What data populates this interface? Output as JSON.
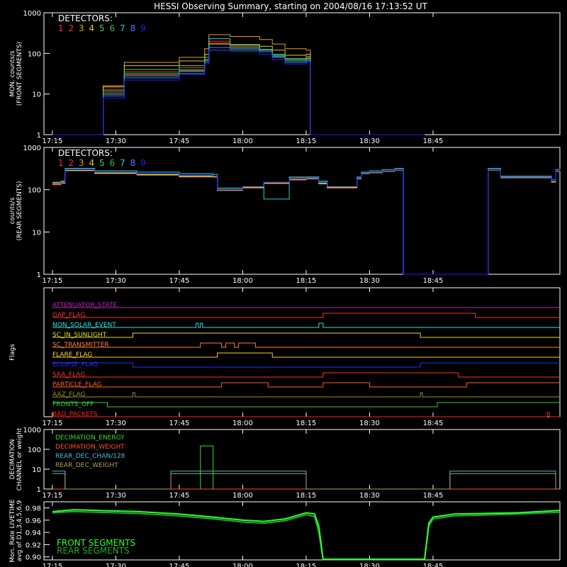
{
  "title": "HESSI Observing Summary, starting on 2004/08/16 17:13:52 UT",
  "colors": {
    "background": "#000000",
    "axes": "#ffffff",
    "detectors": [
      "#ff3030",
      "#ff3030",
      "#e0a020",
      "#e0d020",
      "#50d050",
      "#20c040",
      "#30d0c0",
      "#4080ff",
      "#2020ff"
    ],
    "flags": [
      "#c020c0",
      "#ff3030",
      "#30e0e0",
      "#e0e020",
      "#ff8030",
      "#ffd030",
      "#2030ff",
      "#ff3030",
      "#ff6020",
      "#a09020",
      "#30d030",
      "#ff2020"
    ],
    "decimation": [
      "#30e030",
      "#ff5020",
      "#40c0e0",
      "#b0a060"
    ],
    "livetime": [
      "#30ff30",
      "#20b020"
    ]
  },
  "x_ticks": [
    "17:15",
    "17:30",
    "17:45",
    "18:00",
    "18:15",
    "18:30",
    "18:45"
  ],
  "chart_data": [
    {
      "type": "line",
      "panel": "front",
      "ylabel": [
        "MON. counts/s",
        "(FRONT SEGMENTS)"
      ],
      "y_scale": "log",
      "y_ticks": [
        "1000",
        "100",
        "10",
        "1"
      ],
      "ylim": [
        1,
        1000
      ],
      "legend_title": "DETECTORS:",
      "legend_numbers": [
        "1",
        "2",
        "3",
        "4",
        "5",
        "6",
        "7",
        "8",
        "9"
      ],
      "x_minutes": [
        0,
        11,
        12,
        17,
        30,
        36,
        37,
        42,
        49,
        52,
        55,
        60,
        61,
        62,
        63,
        64,
        72,
        88
      ],
      "series": [
        {
          "values": [
            1,
            1,
            13,
            35,
            45,
            70,
            200,
            150,
            120,
            90,
            70,
            85,
            1,
            1,
            1,
            1,
            1,
            1
          ]
        },
        {
          "values": [
            1,
            1,
            11,
            30,
            38,
            60,
            180,
            140,
            110,
            80,
            60,
            70,
            1,
            1,
            1,
            1,
            1,
            1
          ]
        },
        {
          "values": [
            1,
            1,
            16,
            60,
            80,
            130,
            290,
            260,
            220,
            170,
            130,
            120,
            1,
            1,
            1,
            1,
            1,
            1
          ]
        },
        {
          "values": [
            1,
            1,
            15,
            50,
            65,
            95,
            170,
            165,
            150,
            120,
            90,
            95,
            1,
            1,
            1,
            1,
            1,
            1
          ]
        },
        {
          "values": [
            1,
            1,
            12,
            40,
            50,
            80,
            140,
            140,
            125,
            95,
            75,
            80,
            1,
            1,
            1,
            1,
            1,
            1
          ]
        },
        {
          "values": [
            1,
            1,
            10,
            32,
            40,
            70,
            120,
            120,
            110,
            85,
            65,
            70,
            1,
            1,
            1,
            1,
            1,
            1
          ]
        },
        {
          "values": [
            1,
            1,
            10,
            28,
            36,
            70,
            230,
            160,
            120,
            90,
            70,
            75,
            1,
            1,
            1,
            1,
            1,
            1
          ]
        },
        {
          "values": [
            1,
            1,
            9,
            25,
            32,
            65,
            140,
            130,
            110,
            80,
            60,
            65,
            1,
            1,
            1,
            1,
            1,
            1
          ]
        },
        {
          "values": [
            1,
            1,
            8,
            22,
            30,
            55,
            120,
            110,
            95,
            70,
            55,
            60,
            1,
            1,
            1,
            1,
            1,
            1
          ]
        }
      ]
    },
    {
      "type": "line",
      "panel": "rear",
      "ylabel": [
        "counts/s",
        "(REAR SEGMENTS)"
      ],
      "y_scale": "log",
      "y_ticks": [
        "1000",
        "100",
        "10",
        "1"
      ],
      "ylim": [
        1,
        1000
      ],
      "legend_title": "DETECTORS:",
      "legend_numbers": [
        "1",
        "2",
        "3",
        "4",
        "5",
        "6",
        "7",
        "8",
        "9"
      ],
      "x_minutes": [
        0,
        2,
        3,
        10,
        20,
        30,
        38,
        39,
        45,
        50,
        56,
        60,
        63,
        65,
        72,
        73,
        75,
        78,
        81,
        83,
        87,
        88,
        89,
        102,
        103,
        106,
        118,
        119,
        120
      ],
      "series": [
        {
          "values": [
            140,
            150,
            300,
            260,
            240,
            220,
            210,
            100,
            120,
            150,
            190,
            200,
            150,
            120,
            190,
            250,
            260,
            280,
            300,
            1,
            1,
            1,
            1,
            1,
            300,
            200,
            160,
            280,
            300
          ]
        },
        {
          "values": [
            130,
            140,
            280,
            240,
            220,
            200,
            200,
            95,
            110,
            140,
            170,
            180,
            140,
            110,
            180,
            240,
            250,
            270,
            290,
            1,
            1,
            1,
            1,
            1,
            290,
            190,
            150,
            270,
            290
          ]
        },
        {
          "values": [
            150,
            160,
            290,
            250,
            230,
            210,
            205,
            100,
            115,
            145,
            175,
            185,
            140,
            115,
            185,
            245,
            255,
            275,
            295,
            1,
            1,
            1,
            1,
            1,
            295,
            195,
            155,
            275,
            295
          ]
        },
        {
          "values": [
            135,
            145,
            285,
            245,
            225,
            205,
            200,
            98,
            112,
            142,
            172,
            182,
            138,
            112,
            182,
            242,
            252,
            272,
            292,
            1,
            1,
            1,
            1,
            1,
            292,
            192,
            152,
            272,
            292
          ]
        },
        {
          "values": [
            145,
            155,
            295,
            255,
            235,
            215,
            210,
            102,
            118,
            148,
            178,
            188,
            145,
            118,
            188,
            248,
            258,
            278,
            298,
            1,
            1,
            1,
            1,
            1,
            298,
            198,
            158,
            278,
            298
          ]
        },
        {
          "values": [
            140,
            150,
            300,
            260,
            240,
            220,
            210,
            100,
            120,
            150,
            180,
            190,
            150,
            120,
            190,
            250,
            260,
            280,
            300,
            1,
            1,
            1,
            1,
            1,
            300,
            200,
            160,
            280,
            300
          ]
        },
        {
          "values": [
            140,
            160,
            320,
            280,
            260,
            240,
            230,
            110,
            120,
            60,
            200,
            200,
            160,
            120,
            200,
            260,
            280,
            300,
            320,
            1,
            1,
            1,
            1,
            1,
            320,
            210,
            170,
            300,
            320
          ]
        },
        {
          "values": [
            140,
            150,
            300,
            260,
            240,
            220,
            210,
            100,
            120,
            150,
            180,
            190,
            150,
            120,
            190,
            250,
            260,
            280,
            300,
            1,
            1,
            1,
            1,
            1,
            300,
            200,
            160,
            280,
            300
          ]
        },
        {
          "values": [
            140,
            150,
            300,
            260,
            240,
            220,
            210,
            100,
            120,
            150,
            180,
            190,
            150,
            120,
            190,
            250,
            260,
            280,
            300,
            1,
            1,
            1,
            1,
            1,
            300,
            200,
            160,
            280,
            300
          ]
        }
      ]
    },
    {
      "type": "line",
      "panel": "flags",
      "ylabel": "Flags",
      "rows": [
        {
          "label": "ATTENUATOR_STATE",
          "segments": [
            [
              0,
              120,
              0
            ]
          ]
        },
        {
          "label": "GAP_FLAG",
          "segments": [
            [
              0,
              64,
              0
            ],
            [
              64,
              100,
              1
            ],
            [
              100,
              120,
              0
            ]
          ]
        },
        {
          "label": "NON_SOLAR_EVENT",
          "segments": [
            [
              0,
              34,
              0
            ],
            [
              34,
              34.5,
              1
            ],
            [
              34.5,
              35,
              0
            ],
            [
              35,
              35.5,
              1
            ],
            [
              35.5,
              63,
              0
            ],
            [
              63,
              64,
              1
            ],
            [
              64,
              120,
              0
            ]
          ]
        },
        {
          "label": "SC_IN_SUNLIGHT",
          "segments": [
            [
              0,
              19,
              0
            ],
            [
              19,
              87,
              1
            ],
            [
              87,
              120,
              0
            ]
          ]
        },
        {
          "label": "SC_TRANSMITTER",
          "segments": [
            [
              0,
              35,
              0
            ],
            [
              35,
              40,
              1
            ],
            [
              40,
              41,
              0
            ],
            [
              41,
              43,
              1
            ],
            [
              43,
              44,
              0
            ],
            [
              44,
              48,
              1
            ],
            [
              48,
              120,
              0
            ]
          ]
        },
        {
          "label": "FLARE_FLAG",
          "segments": [
            [
              0,
              39,
              0
            ],
            [
              39,
              52,
              1
            ],
            [
              52,
              120,
              0
            ]
          ]
        },
        {
          "label": "ECLIPSE_FLAG",
          "segments": [
            [
              0,
              19,
              1
            ],
            [
              19,
              87,
              0
            ],
            [
              87,
              120,
              1
            ]
          ]
        },
        {
          "label": "SAA_FLAG",
          "segments": [
            [
              0,
              64,
              0
            ],
            [
              64,
              96,
              1
            ],
            [
              96,
              120,
              0
            ]
          ]
        },
        {
          "label": "PARTICLE_FLAG",
          "segments": [
            [
              0,
              40,
              0
            ],
            [
              40,
              51,
              1
            ],
            [
              51,
              64,
              0
            ],
            [
              64,
              75,
              1
            ],
            [
              75,
              98,
              0
            ],
            [
              98,
              120,
              1
            ]
          ]
        },
        {
          "label": "AAZ_FLAG",
          "segments": [
            [
              0,
              19,
              0
            ],
            [
              19,
              19.5,
              1
            ],
            [
              19.5,
              87,
              0
            ],
            [
              87,
              87.5,
              1
            ],
            [
              87.5,
              120,
              0
            ]
          ]
        },
        {
          "label": "FRONTS_OFF",
          "segments": [
            [
              0,
              13,
              1
            ],
            [
              13,
              91,
              0
            ],
            [
              91,
              120,
              1
            ]
          ]
        },
        {
          "label": "BAD_PACKETS",
          "segments": [
            [
              0,
              117,
              0
            ],
            [
              117,
              117.5,
              1
            ],
            [
              117.5,
              120,
              0
            ]
          ]
        }
      ]
    },
    {
      "type": "line",
      "panel": "decimation",
      "ylabel": [
        "DECIMATION",
        "CHANNEL or weight"
      ],
      "y_scale": "log",
      "y_ticks": [
        "1000",
        "100",
        "10",
        "1"
      ],
      "ylim": [
        1,
        1000
      ],
      "x_minutes": [
        0,
        2,
        3,
        28,
        34,
        35,
        38,
        39,
        60,
        94,
        95,
        118,
        119,
        120
      ],
      "series": [
        {
          "name": "DECIMATION_ENERGY",
          "values": [
            1,
            1,
            1,
            1,
            1,
            150,
            1,
            1,
            1,
            1,
            1,
            1,
            1,
            1
          ]
        },
        {
          "name": "DECIMATION_WEIGHT",
          "values": [
            1,
            1,
            1,
            1,
            1,
            1,
            1,
            1,
            1,
            1,
            1,
            1,
            1,
            1
          ]
        },
        {
          "name": "REAR_DEC_CHAN/128",
          "values": [
            8,
            8,
            1,
            8,
            8,
            8,
            8,
            8,
            1,
            8,
            8,
            8,
            1,
            1
          ]
        },
        {
          "name": "REAR_DEC_WEIGHT",
          "values": [
            6,
            6,
            1,
            6,
            6,
            6,
            6,
            6,
            1,
            6,
            6,
            6,
            1,
            1
          ]
        }
      ]
    },
    {
      "type": "line",
      "panel": "livetime",
      "ylabel": [
        "Mon. Rate LIVETIME",
        "avg of D1,3,4,5,6,9"
      ],
      "y_ticks": [
        "0.98",
        "0.96",
        "0.94",
        "0.92",
        "0.90"
      ],
      "ylim": [
        0.895,
        0.99
      ],
      "x_minutes": [
        0,
        5,
        10,
        20,
        30,
        38,
        45,
        50,
        55,
        60,
        62,
        63,
        64,
        65,
        88,
        89,
        90,
        95,
        110,
        120
      ],
      "series": [
        {
          "name": "FRONT SEGMENTS",
          "values": [
            0.974,
            0.977,
            0.976,
            0.974,
            0.97,
            0.965,
            0.96,
            0.958,
            0.962,
            0.972,
            0.97,
            0.95,
            0.896,
            0.896,
            0.896,
            0.955,
            0.965,
            0.97,
            0.972,
            0.976
          ]
        },
        {
          "name": "REAR SEGMENTS",
          "values": [
            0.972,
            0.974,
            0.973,
            0.971,
            0.967,
            0.962,
            0.957,
            0.955,
            0.959,
            0.969,
            0.966,
            0.94,
            0.896,
            0.896,
            0.896,
            0.95,
            0.962,
            0.967,
            0.97,
            0.973
          ]
        }
      ]
    }
  ]
}
